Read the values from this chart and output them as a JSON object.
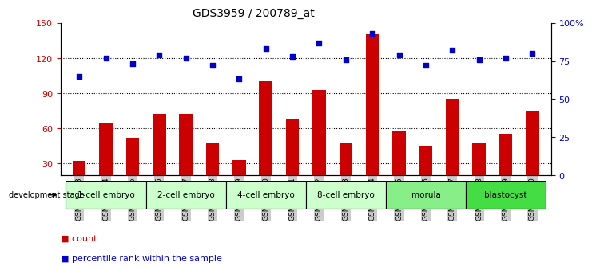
{
  "title": "GDS3959 / 200789_at",
  "samples": [
    "GSM456643",
    "GSM456644",
    "GSM456645",
    "GSM456646",
    "GSM456647",
    "GSM456648",
    "GSM456649",
    "GSM456650",
    "GSM456651",
    "GSM456652",
    "GSM456653",
    "GSM456654",
    "GSM456655",
    "GSM456656",
    "GSM456657",
    "GSM456658",
    "GSM456659",
    "GSM456660"
  ],
  "counts": [
    32,
    65,
    52,
    72,
    72,
    47,
    33,
    100,
    68,
    93,
    48,
    140,
    58,
    45,
    85,
    47,
    55,
    75
  ],
  "percentiles": [
    65,
    77,
    73,
    79,
    77,
    72,
    63,
    83,
    78,
    87,
    76,
    93,
    79,
    72,
    82,
    76,
    77,
    80
  ],
  "stages": [
    {
      "label": "1-cell embryo",
      "start": 0,
      "end": 3
    },
    {
      "label": "2-cell embryo",
      "start": 3,
      "end": 6
    },
    {
      "label": "4-cell embryo",
      "start": 6,
      "end": 9
    },
    {
      "label": "8-cell embryo",
      "start": 9,
      "end": 12
    },
    {
      "label": "morula",
      "start": 12,
      "end": 15
    },
    {
      "label": "blastocyst",
      "start": 15,
      "end": 18
    }
  ],
  "stage_fill": [
    "#ccffcc",
    "#ccffcc",
    "#ccffcc",
    "#ccffcc",
    "#88ee88",
    "#44dd44"
  ],
  "ylim_left": [
    20,
    150
  ],
  "ylim_right": [
    0,
    100
  ],
  "yticks_left": [
    30,
    60,
    90,
    120,
    150
  ],
  "yticks_right": [
    0,
    25,
    50,
    75,
    100
  ],
  "bar_color": "#cc0000",
  "dot_color": "#0000cc",
  "grid_color": "#000000",
  "tick_bg": "#cccccc"
}
